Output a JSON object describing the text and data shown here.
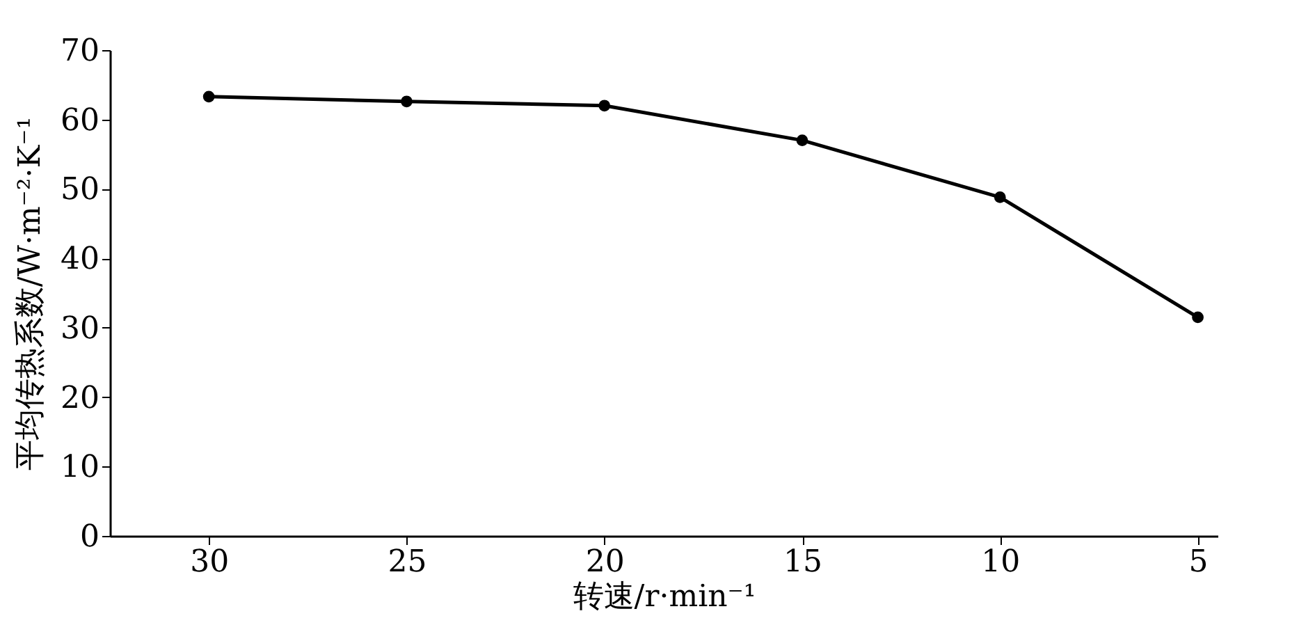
{
  "chart_data": {
    "type": "line",
    "xlabel": "转速/r·min⁻¹",
    "ylabel": "平均传热系数/W·m⁻²·K⁻¹",
    "x": [
      30,
      25,
      20,
      15,
      10,
      5
    ],
    "series": [
      {
        "color": "#000000",
        "values": [
          63.3,
          62.6,
          62.0,
          57.0,
          48.8,
          31.5
        ]
      }
    ],
    "xlim": [
      32.5,
      4.5
    ],
    "xticks": [
      30,
      25,
      20,
      15,
      10,
      5
    ],
    "ylim": [
      0,
      70
    ],
    "yticks": [
      0,
      10,
      20,
      30,
      40,
      50,
      60,
      70
    ],
    "grid": false,
    "marker": "circle",
    "line_style": "solid"
  }
}
